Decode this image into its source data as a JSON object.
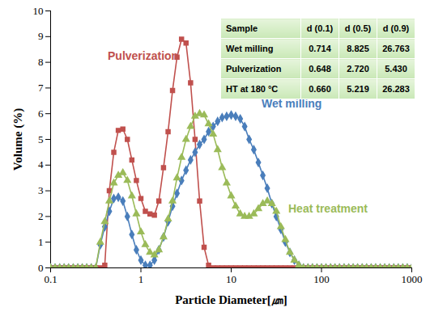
{
  "chart_data": {
    "type": "line",
    "x_label": "Particle Diameter[㎛]",
    "y_label": "Volume (%)",
    "log": "x",
    "grid": false,
    "xlim": [
      0.1,
      1000
    ],
    "xticks": [
      0.1,
      1,
      10,
      100,
      1000
    ],
    "ylim": [
      0,
      10
    ],
    "yticks": [
      0,
      1,
      2,
      3,
      4,
      5,
      6,
      7,
      8,
      9,
      10
    ],
    "x": [
      0.1,
      0.112,
      0.126,
      0.141,
      0.158,
      0.178,
      0.2,
      0.224,
      0.251,
      0.282,
      0.316,
      0.355,
      0.398,
      0.447,
      0.501,
      0.562,
      0.631,
      0.708,
      0.794,
      0.891,
      1,
      1.12,
      1.26,
      1.41,
      1.58,
      1.78,
      2,
      2.24,
      2.51,
      2.82,
      3.16,
      3.55,
      3.98,
      4.47,
      5.01,
      5.62,
      6.31,
      7.08,
      7.94,
      8.91,
      10,
      11.2,
      12.6,
      14.1,
      15.8,
      17.8,
      20,
      22.4,
      25.1,
      28.2,
      31.6,
      35.5,
      39.8,
      44.7,
      50.1,
      56.2,
      63.1,
      70.8,
      79.4,
      89.1,
      100,
      112,
      126,
      141,
      158,
      178,
      200,
      224,
      251,
      282,
      316,
      355,
      398,
      447,
      501,
      562,
      631,
      708,
      794,
      891,
      1000
    ],
    "series": [
      {
        "name": "Pulverization",
        "color": "#c0504d",
        "marker": "square",
        "values": [
          0,
          0,
          0,
          0,
          0,
          0,
          0,
          0,
          0,
          0,
          0,
          0,
          0.1,
          3.0,
          4.5,
          5.35,
          5.4,
          5.0,
          4.2,
          3.4,
          2.7,
          2.2,
          2.1,
          2.05,
          2.6,
          3.9,
          5.3,
          6.9,
          8.2,
          8.9,
          8.75,
          7.2,
          5.0,
          2.6,
          0.8,
          0.1,
          0,
          0,
          0,
          0,
          0,
          0,
          0,
          0,
          0,
          0,
          0,
          0,
          0,
          0,
          0,
          0,
          0,
          0,
          0,
          0,
          0,
          0,
          0,
          0,
          0,
          0,
          0,
          0,
          0,
          0,
          0,
          0,
          0,
          0,
          0,
          0,
          0,
          0,
          0,
          0,
          0,
          0,
          0,
          0,
          0
        ]
      },
      {
        "name": "Wet milling",
        "color": "#4a7ebb",
        "marker": "diamond",
        "values": [
          0,
          0,
          0,
          0,
          0,
          0,
          0,
          0,
          0,
          0,
          0,
          0.9,
          1.6,
          2.2,
          2.7,
          2.75,
          2.6,
          2.0,
          1.3,
          0.7,
          0.3,
          0.1,
          0.1,
          0.3,
          0.7,
          1.2,
          1.8,
          2.4,
          2.9,
          3.4,
          3.8,
          4.2,
          4.5,
          4.8,
          5.0,
          5.3,
          5.5,
          5.7,
          5.85,
          5.9,
          5.95,
          5.9,
          5.8,
          5.5,
          5.0,
          4.6,
          4.1,
          3.6,
          3.1,
          2.5,
          2.0,
          1.5,
          1.0,
          0.6,
          0.3,
          0.1,
          0,
          0,
          0,
          0,
          0,
          0,
          0,
          0,
          0,
          0,
          0,
          0,
          0,
          0,
          0,
          0,
          0,
          0,
          0,
          0,
          0,
          0,
          0,
          0,
          0
        ]
      },
      {
        "name": "Heat treatment",
        "color": "#9bbb59",
        "marker": "triangle",
        "values": [
          0,
          0,
          0,
          0,
          0,
          0,
          0,
          0,
          0,
          0,
          0,
          1.0,
          1.8,
          2.6,
          3.3,
          3.6,
          3.7,
          3.4,
          2.8,
          2.1,
          1.4,
          0.9,
          0.6,
          0.5,
          0.7,
          1.2,
          1.9,
          2.6,
          3.5,
          4.3,
          5.0,
          5.5,
          5.9,
          6.0,
          5.95,
          5.6,
          5.2,
          4.6,
          3.9,
          3.3,
          2.8,
          2.4,
          2.1,
          2.0,
          2.0,
          2.1,
          2.3,
          2.5,
          2.6,
          2.5,
          2.2,
          1.6,
          1.1,
          0.6,
          0.3,
          0.1,
          0,
          0,
          0,
          0,
          0,
          0,
          0,
          0,
          0,
          0,
          0,
          0,
          0,
          0,
          0,
          0,
          0,
          0,
          0,
          0,
          0,
          0,
          0,
          0,
          0
        ]
      }
    ],
    "table": {
      "columns": [
        "Sample",
        "d (0.1)",
        "d (0.5)",
        "d (0.9)"
      ],
      "rows": [
        [
          "Wet milling",
          "0.714",
          "8.825",
          "26.763"
        ],
        [
          "Pulverization",
          "0.648",
          "2.720",
          "5.430"
        ],
        [
          "HT at 180 °C",
          "0.660",
          "5.219",
          "26.283"
        ]
      ]
    }
  }
}
